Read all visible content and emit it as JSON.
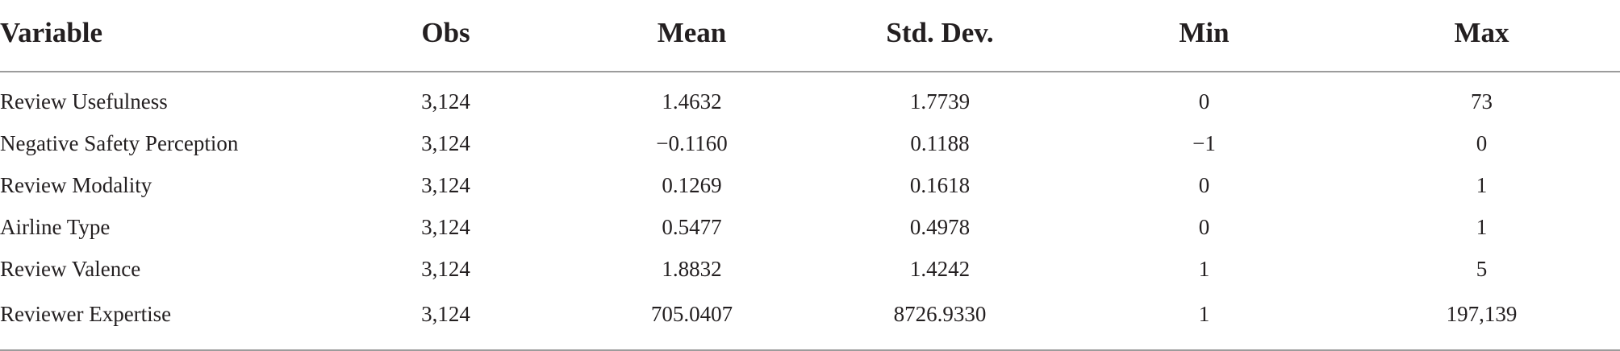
{
  "table": {
    "headers": [
      "Variable",
      "Obs",
      "Mean",
      "Std. Dev.",
      "Min",
      "Max"
    ],
    "rows": [
      [
        "Review Usefulness",
        "3,124",
        "1.4632",
        "1.7739",
        "0",
        "73"
      ],
      [
        "Negative Safety Perception",
        "3,124",
        "−0.1160",
        "0.1188",
        "−1",
        "0"
      ],
      [
        "Review Modality",
        "3,124",
        "0.1269",
        "0.1618",
        "0",
        "1"
      ],
      [
        "Airline Type",
        "3,124",
        "0.5477",
        "0.4978",
        "0",
        "1"
      ],
      [
        "Review Valence",
        "3,124",
        "1.8832",
        "1.4242",
        "1",
        "5"
      ],
      [
        "Reviewer Expertise",
        "3,124",
        "705.0407",
        "8726.9330",
        "1",
        "197,139"
      ]
    ]
  }
}
